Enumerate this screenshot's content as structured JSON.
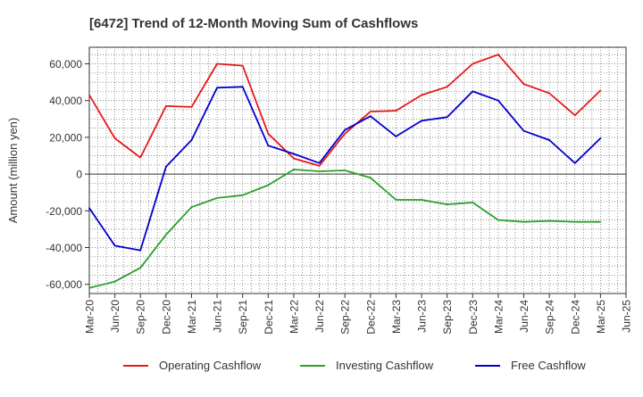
{
  "chart_data": {
    "type": "line",
    "title": "[6472]  Trend of 12-Month Moving Sum of Cashflows",
    "xlabel": "",
    "ylabel": "Amount (million yen)",
    "ylim": [
      -65000,
      69000
    ],
    "yticks": [
      -60000,
      -40000,
      -20000,
      0,
      20000,
      40000,
      60000
    ],
    "ytick_labels": [
      "-60,000",
      "-40,000",
      "-20,000",
      "0",
      "20,000",
      "40,000",
      "60,000"
    ],
    "x": [
      "Mar-20",
      "Jun-20",
      "Sep-20",
      "Dec-20",
      "Mar-21",
      "Jun-21",
      "Sep-21",
      "Dec-21",
      "Mar-22",
      "Jun-22",
      "Sep-22",
      "Dec-22",
      "Mar-23",
      "Jun-23",
      "Sep-23",
      "Dec-23",
      "Mar-24",
      "Jun-24",
      "Sep-24",
      "Dec-24",
      "Mar-25",
      "Jun-25"
    ],
    "grid": true,
    "legend_position": "bottom",
    "series": [
      {
        "name": "Operating Cashflow",
        "color": "#e41a1c",
        "values": [
          43000,
          19500,
          9000,
          37000,
          36500,
          60000,
          59000,
          22000,
          8500,
          4500,
          22000,
          34000,
          34500,
          43000,
          47500,
          60000,
          65000,
          49000,
          44000,
          32000,
          45500,
          null
        ]
      },
      {
        "name": "Investing Cashflow",
        "color": "#2ca02c",
        "values": [
          -62000,
          -58500,
          -51000,
          -33000,
          -18000,
          -13000,
          -11500,
          -6000,
          2500,
          1500,
          2000,
          -2000,
          -14000,
          -14000,
          -16500,
          -15500,
          -25000,
          -26000,
          -25500,
          -26000,
          -26000,
          null
        ]
      },
      {
        "name": "Free Cashflow",
        "color": "#0000cc",
        "values": [
          -18500,
          -39000,
          -41500,
          4000,
          18500,
          47000,
          47500,
          15500,
          11000,
          6000,
          24000,
          31500,
          20500,
          29000,
          31000,
          45000,
          40000,
          23500,
          18500,
          6000,
          19500,
          null
        ]
      }
    ]
  }
}
